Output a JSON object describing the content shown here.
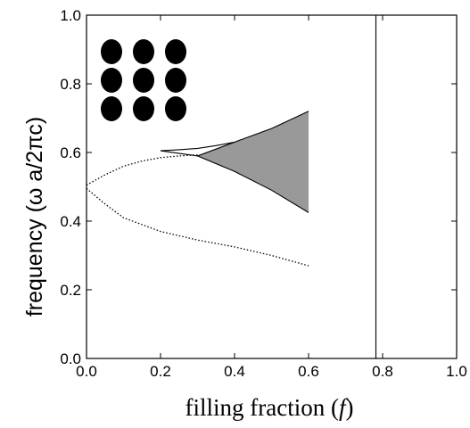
{
  "chart_data": {
    "type": "line",
    "title": "",
    "xlabel": "filling fraction",
    "xlabel_symbol": "f",
    "ylabel": "frequency (ω a/2πc)",
    "xlim": [
      0.0,
      1.0
    ],
    "ylim": [
      0.0,
      1.0
    ],
    "x_ticks": [
      {
        "value": 0.0,
        "label": "0.0"
      },
      {
        "value": 0.2,
        "label": "0.2"
      },
      {
        "value": 0.4,
        "label": "0.4"
      },
      {
        "value": 0.6,
        "label": "0.6"
      },
      {
        "value": 0.8,
        "label": "0.8"
      },
      {
        "value": 1.0,
        "label": "1.0"
      }
    ],
    "y_ticks": [
      {
        "value": 0.0,
        "label": "0.0"
      },
      {
        "value": 0.2,
        "label": "0.2"
      },
      {
        "value": 0.4,
        "label": "0.4"
      },
      {
        "value": 0.6,
        "label": "0.6"
      },
      {
        "value": 0.8,
        "label": "0.8"
      },
      {
        "value": 1.0,
        "label": "1.0"
      }
    ],
    "grid": false,
    "legend": "none",
    "inset": {
      "description": "3x3 lattice of elliptical rods",
      "rows": 3,
      "cols": 3,
      "color": "#000000"
    },
    "series": [
      {
        "style": "dotted",
        "color": "#000000",
        "points": [
          [
            0.0,
            0.505
          ],
          [
            0.05,
            0.535
          ],
          [
            0.1,
            0.56
          ],
          [
            0.15,
            0.575
          ],
          [
            0.2,
            0.585
          ],
          [
            0.25,
            0.59
          ],
          [
            0.3,
            0.593
          ]
        ]
      },
      {
        "style": "dotted",
        "color": "#000000",
        "points": [
          [
            0.0,
            0.495
          ],
          [
            0.05,
            0.45
          ],
          [
            0.1,
            0.41
          ],
          [
            0.2,
            0.37
          ],
          [
            0.3,
            0.345
          ],
          [
            0.4,
            0.325
          ],
          [
            0.5,
            0.3
          ],
          [
            0.6,
            0.27
          ]
        ]
      },
      {
        "style": "solid",
        "color": "#000000",
        "points": [
          [
            0.2,
            0.605
          ],
          [
            0.3,
            0.59
          ],
          [
            0.4,
            0.63
          ],
          [
            0.5,
            0.67
          ],
          [
            0.6,
            0.72
          ]
        ]
      },
      {
        "style": "solid",
        "color": "#000000",
        "points": [
          [
            0.2,
            0.605
          ],
          [
            0.25,
            0.608
          ],
          [
            0.3,
            0.612
          ],
          [
            0.35,
            0.62
          ],
          [
            0.4,
            0.63
          ]
        ]
      },
      {
        "style": "solid",
        "color": "#000000",
        "points": [
          [
            0.3,
            0.59
          ],
          [
            0.4,
            0.545
          ],
          [
            0.5,
            0.49
          ],
          [
            0.6,
            0.425
          ]
        ]
      },
      {
        "style": "solid",
        "color": "#000000",
        "points": [
          [
            0.782,
            0.0
          ],
          [
            0.782,
            1.0
          ]
        ]
      }
    ],
    "bandgap": {
      "fill": "#999999",
      "upper": [
        [
          0.3,
          0.59
        ],
        [
          0.4,
          0.63
        ],
        [
          0.5,
          0.67
        ],
        [
          0.6,
          0.72
        ]
      ],
      "lower": [
        [
          0.3,
          0.59
        ],
        [
          0.4,
          0.545
        ],
        [
          0.5,
          0.49
        ],
        [
          0.6,
          0.425
        ]
      ]
    }
  }
}
